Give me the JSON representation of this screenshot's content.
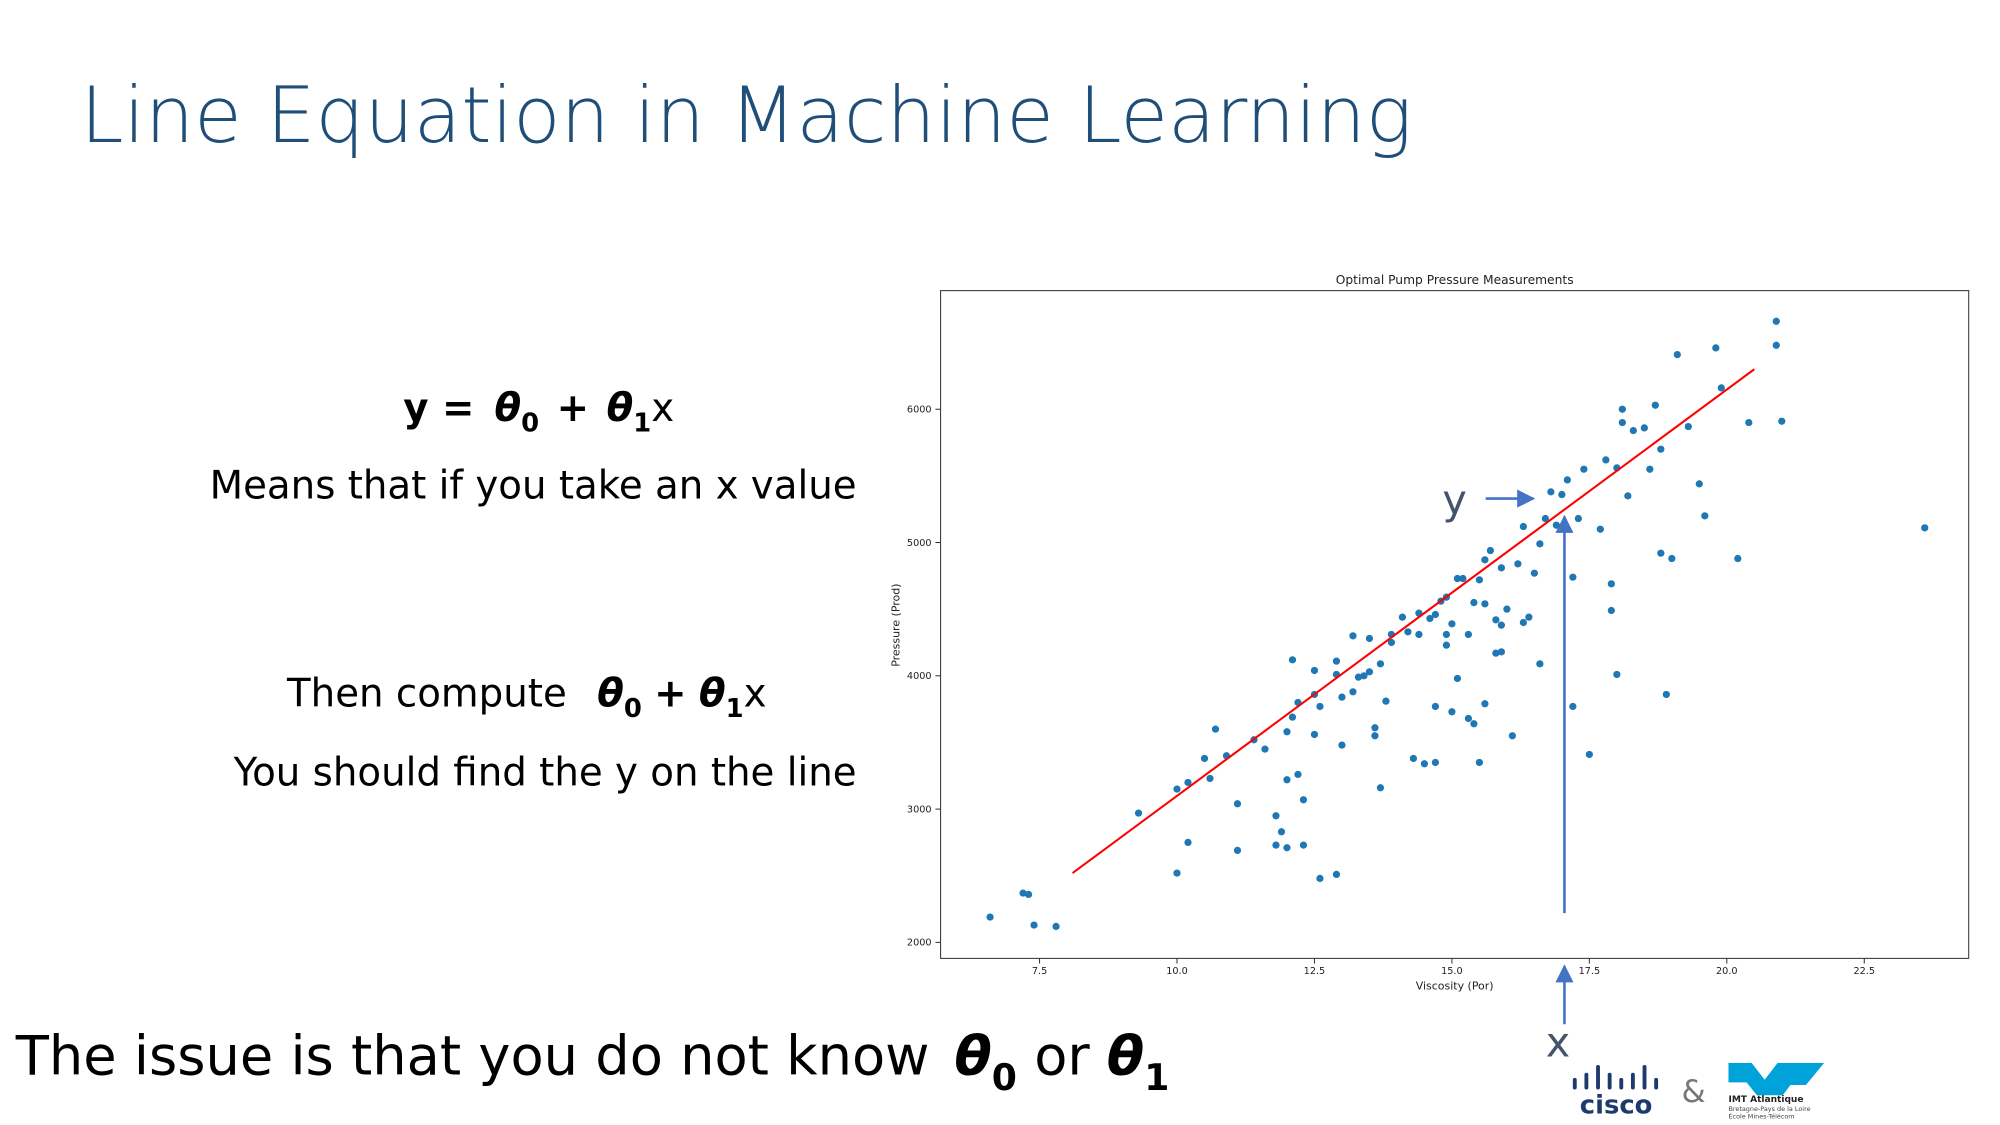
{
  "slide": {
    "title": "Line Equation in Machine Learning",
    "equation": [
      "y =",
      "θ",
      "0",
      "+",
      "θ",
      "1",
      "x"
    ],
    "line_1": "Means that if you take an x value",
    "compute_text": "Then compute",
    "compute_expr": [
      "θ",
      "0",
      "+",
      "θ",
      "1",
      "x"
    ],
    "line_2": "You should find the y on the line",
    "issue": [
      "The issue is that you do not know",
      "θ",
      "0",
      "or",
      "θ",
      "1"
    ],
    "annotations": {
      "y_label": "y",
      "x_label": "x"
    },
    "logos": {
      "cisco": "cisco",
      "amp": "&",
      "imt": "IMT Atlantique",
      "imt_sub1": "Bretagne-Pays de la Loire",
      "imt_sub2": "École Mines-Télécom"
    }
  },
  "chart_data": {
    "type": "scatter",
    "title": "Optimal Pump Pressure Measurements",
    "x_label": "Viscosity (Por)",
    "y_label": "Pressure (Prod)",
    "xlim": [
      5.7,
      24.4
    ],
    "ylim": [
      1880,
      6890
    ],
    "xticks": [
      7.5,
      {
        "value": 10,
        "label": "10.0"
      },
      12.5,
      {
        "value": 15,
        "label": "15.0"
      },
      17.5,
      {
        "value": 20,
        "label": "20.0"
      },
      22.5
    ],
    "yticks": [
      2000,
      3000,
      4000,
      5000,
      6000
    ],
    "grid": false,
    "series": [
      {
        "color": "#1f77b4",
        "x": [
          6.6,
          7.2,
          7.3,
          7.4,
          7.8,
          9.3,
          10.0,
          10.0,
          10.2,
          10.2,
          10.5,
          10.6,
          10.7,
          10.9,
          11.1,
          11.1,
          11.4,
          11.6,
          11.8,
          11.8,
          11.9,
          12.0,
          12.0,
          12.1,
          12.0,
          12.1,
          12.2,
          12.2,
          12.3,
          12.3,
          12.5,
          12.5,
          12.5,
          12.6,
          12.6,
          12.9,
          12.9,
          12.9,
          13.0,
          13.0,
          13.2,
          13.2,
          13.3,
          13.4,
          13.5,
          13.5,
          13.6,
          13.6,
          13.7,
          13.7,
          13.8,
          13.9,
          13.9,
          14.1,
          14.2,
          14.3,
          14.4,
          14.4,
          14.5,
          14.6,
          14.7,
          14.7,
          14.7,
          14.8,
          14.9,
          14.9,
          14.9,
          15.0,
          15.0,
          15.1,
          15.1,
          15.2,
          15.3,
          15.3,
          15.4,
          15.4,
          15.5,
          15.5,
          15.6,
          15.6,
          15.6,
          15.7,
          15.8,
          15.8,
          15.9,
          15.9,
          15.9,
          16.0,
          16.1,
          16.2,
          16.3,
          16.3,
          16.4,
          16.5,
          16.6,
          16.6,
          16.7,
          16.8,
          16.9,
          17.0,
          17.1,
          17.2,
          17.2,
          17.3,
          17.4,
          17.5,
          17.7,
          17.8,
          17.9,
          17.9,
          18.0,
          18.0,
          18.1,
          18.1,
          18.2,
          18.3,
          18.5,
          18.6,
          18.7,
          18.8,
          18.8,
          18.9,
          19.0,
          19.1,
          19.3,
          19.5,
          19.6,
          19.8,
          19.9,
          20.2,
          20.4,
          20.9,
          20.9,
          21.0,
          23.6
        ],
        "values": [
          2190,
          2370,
          2360,
          2130,
          2120,
          2970,
          3150,
          2520,
          2750,
          3200,
          3380,
          3230,
          3600,
          3400,
          3040,
          2690,
          3520,
          3450,
          2950,
          2730,
          2830,
          2710,
          3580,
          3690,
          3220,
          4120,
          3260,
          3800,
          3070,
          2730,
          3560,
          3860,
          4040,
          3770,
          2480,
          2510,
          4010,
          4110,
          3840,
          3480,
          3880,
          4300,
          3990,
          4000,
          4030,
          4280,
          3550,
          3610,
          4090,
          3160,
          3810,
          4310,
          4250,
          4440,
          4330,
          3380,
          4310,
          4470,
          3340,
          4430,
          4460,
          3350,
          3770,
          4560,
          4310,
          4230,
          4590,
          3730,
          4390,
          4730,
          3980,
          4730,
          3680,
          4310,
          4550,
          3640,
          4720,
          3350,
          3790,
          4870,
          4540,
          4940,
          4420,
          4170,
          4380,
          4810,
          4180,
          4500,
          3550,
          4840,
          5120,
          4400,
          4440,
          4770,
          4990,
          4090,
          5180,
          5380,
          5130,
          5360,
          5470,
          4740,
          3770,
          5180,
          5550,
          3410,
          5100,
          5620,
          4690,
          4490,
          4010,
          5560,
          6000,
          5900,
          5350,
          5840,
          5860,
          5550,
          6030,
          5700,
          4920,
          3860,
          4880,
          6410,
          5870,
          5440,
          5200,
          6460,
          6160,
          4880,
          5900,
          6480,
          6660,
          5910,
          5110
        ]
      },
      {
        "type": "line",
        "color": "#ff0000",
        "x": [
          8.1,
          20.5
        ],
        "values": [
          2520,
          6300
        ]
      }
    ]
  }
}
